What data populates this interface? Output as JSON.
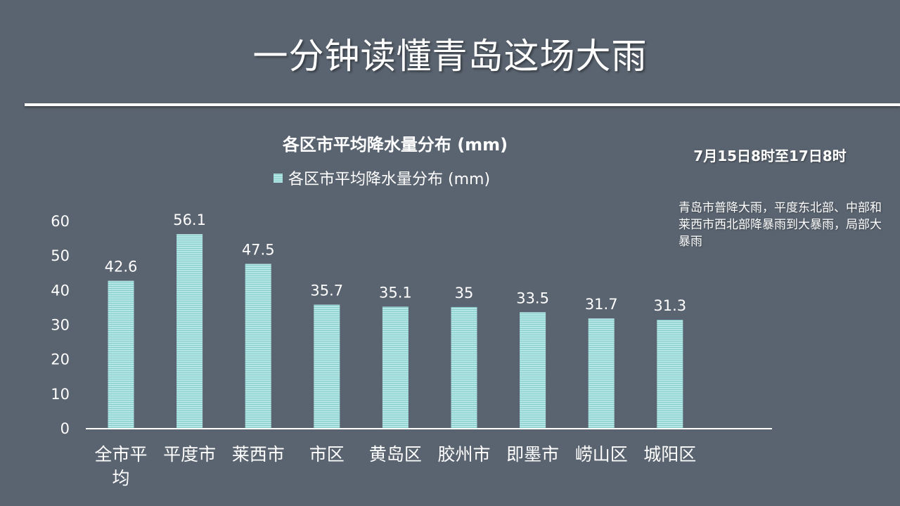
{
  "slide": {
    "title": "一分钟读懂青岛这场大雨"
  },
  "side_text": {
    "date_range": "7月15日8时至17日8时",
    "description": "青岛市普降大雨，平度东北部、中部和莱西市西北部降暴雨到大暴雨，局部大暴雨"
  },
  "chart_data": {
    "type": "bar",
    "title": "各区市平均降水量分布 (mm)",
    "legend": "各区市平均降水量分布 (mm)",
    "legend_position": "top",
    "categories": [
      "全市平均",
      "平度市",
      "莱西市",
      "市区",
      "黄岛区",
      "胶州市",
      "即墨市",
      "崂山区",
      "城阳区"
    ],
    "category_lines": [
      [
        "全市平",
        "均"
      ],
      [
        "平度市"
      ],
      [
        "莱西市"
      ],
      [
        "市区"
      ],
      [
        "黄岛区"
      ],
      [
        "胶州市"
      ],
      [
        "即墨市"
      ],
      [
        "崂山区"
      ],
      [
        "城阳区"
      ]
    ],
    "values": [
      42.6,
      56.1,
      47.5,
      35.7,
      35.1,
      35,
      33.5,
      31.7,
      31.3
    ],
    "value_labels": [
      "42.6",
      "56.1",
      "47.5",
      "35.7",
      "35.1",
      "35",
      "33.5",
      "31.7",
      "31.3"
    ],
    "yticks": [
      "0",
      "10",
      "20",
      "30",
      "40",
      "50",
      "60"
    ],
    "ylim": [
      0,
      60
    ],
    "grid": false,
    "bar_color": "#a8e0df",
    "stripe_color": "#7fc4c4"
  }
}
